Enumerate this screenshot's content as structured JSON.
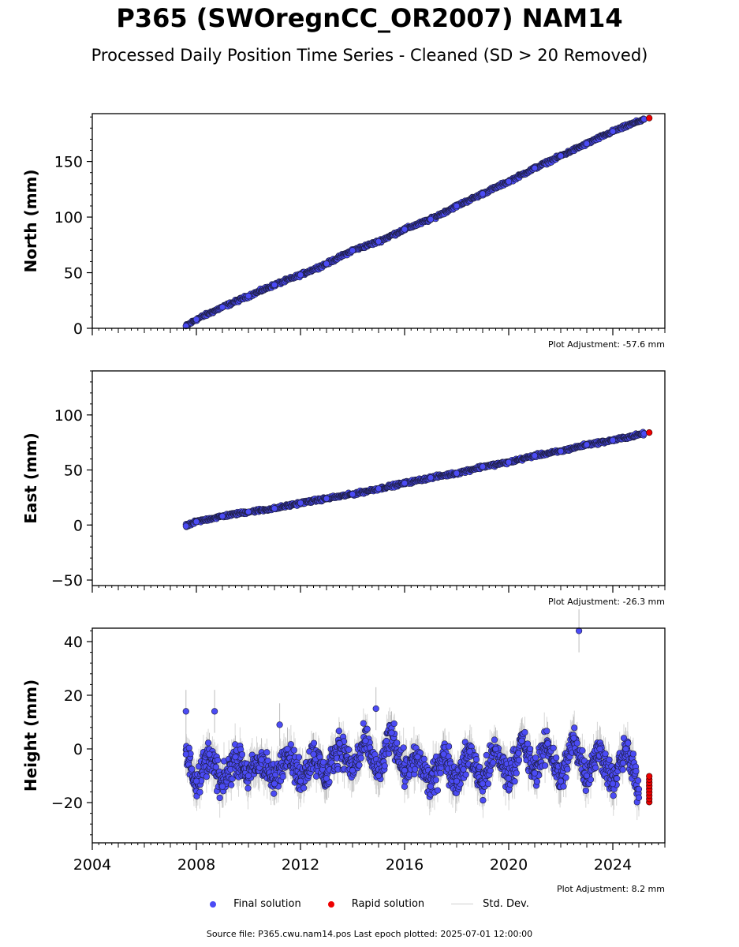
{
  "title": "P365 (SWOregnCC_OR2007) NAM14",
  "subtitle": "Processed Daily Position Time Series - Cleaned (SD > 20 Removed)",
  "legend": {
    "final_label": "Final solution",
    "rapid_label": "Rapid solution",
    "std_label": "Std. Dev.",
    "final_color": "#4b4bf5",
    "rapid_color": "#ee0000",
    "std_color": "#cfcfcf"
  },
  "footer": "Source file: P365.cwu.nam14.pos  Last epoch plotted: 2025-07-01 12:00:00",
  "chart_data": [
    {
      "type": "scatter",
      "ylabel": "North (mm)",
      "xlim": [
        2004,
        2026
      ],
      "ylim": [
        0,
        193
      ],
      "yticks": [
        0,
        50,
        100,
        150
      ],
      "xticks": [
        2004,
        2008,
        2012,
        2016,
        2020,
        2024
      ],
      "adjustment": "Plot Adjustment: -57.6 mm",
      "series": [
        {
          "name": "Final solution",
          "x": [
            2007.6,
            2008.0,
            2009.0,
            2010.0,
            2011.0,
            2012.0,
            2013.0,
            2014.0,
            2015.0,
            2016.0,
            2017.0,
            2018.0,
            2019.0,
            2020.0,
            2021.0,
            2022.0,
            2023.0,
            2024.0,
            2025.2
          ],
          "y": [
            2,
            8,
            19,
            29,
            39,
            48,
            58,
            70,
            78,
            89,
            98,
            110,
            121,
            132,
            144,
            155,
            166,
            177,
            188
          ]
        },
        {
          "name": "Rapid solution",
          "x": [
            2025.4
          ],
          "y": [
            189
          ]
        }
      ]
    },
    {
      "type": "scatter",
      "ylabel": "East (mm)",
      "xlim": [
        2004,
        2026
      ],
      "ylim": [
        -55,
        140
      ],
      "yticks": [
        -50,
        0,
        50,
        100
      ],
      "xticks": [
        2004,
        2008,
        2012,
        2016,
        2020,
        2024
      ],
      "adjustment": "Plot Adjustment: -26.3 mm",
      "series": [
        {
          "name": "Final solution",
          "x": [
            2007.6,
            2008.0,
            2009.0,
            2010.0,
            2011.0,
            2012.0,
            2013.0,
            2014.0,
            2015.0,
            2016.0,
            2017.0,
            2018.0,
            2019.0,
            2020.0,
            2021.0,
            2022.0,
            2023.0,
            2024.0,
            2025.2
          ],
          "y": [
            -1,
            3,
            8,
            12,
            15,
            20,
            24,
            28,
            33,
            38,
            43,
            47,
            53,
            57,
            63,
            67,
            73,
            77,
            83
          ]
        },
        {
          "name": "Rapid solution",
          "x": [
            2025.4
          ],
          "y": [
            84
          ]
        }
      ]
    },
    {
      "type": "scatter",
      "ylabel": "Height (mm)",
      "xlim": [
        2004,
        2026
      ],
      "ylim": [
        -35,
        45
      ],
      "yticks": [
        -20,
        0,
        20,
        40
      ],
      "xticks": [
        2004,
        2008,
        2012,
        2016,
        2020,
        2024
      ],
      "adjustment": "Plot Adjustment: 8.2 mm",
      "series": [
        {
          "name": "Final solution",
          "x": [
            2007.6,
            2008.0,
            2008.5,
            2009.0,
            2009.5,
            2010.0,
            2010.5,
            2011.0,
            2011.5,
            2012.0,
            2012.5,
            2013.0,
            2013.5,
            2014.0,
            2014.5,
            2015.0,
            2015.5,
            2016.0,
            2016.5,
            2017.0,
            2017.5,
            2018.0,
            2018.5,
            2019.0,
            2019.5,
            2020.0,
            2020.5,
            2021.0,
            2021.5,
            2022.0,
            2022.5,
            2023.0,
            2023.5,
            2024.0,
            2024.5,
            2025.0,
            2022.7,
            2007.6,
            2008.7,
            2011.2,
            2014.9
          ],
          "y": [
            -2,
            -12,
            -2,
            -14,
            -3,
            -10,
            -4,
            -13,
            0,
            -12,
            -2,
            -11,
            2,
            -8,
            3,
            -10,
            6,
            -8,
            -3,
            -14,
            -2,
            -12,
            -1,
            -13,
            0,
            -11,
            3,
            -9,
            2,
            -12,
            4,
            -10,
            0,
            -13,
            0,
            -15,
            44,
            14,
            14,
            9,
            15
          ]
        },
        {
          "name": "Rapid solution",
          "x": [
            2025.4
          ],
          "y": [
            -15
          ]
        }
      ]
    }
  ]
}
